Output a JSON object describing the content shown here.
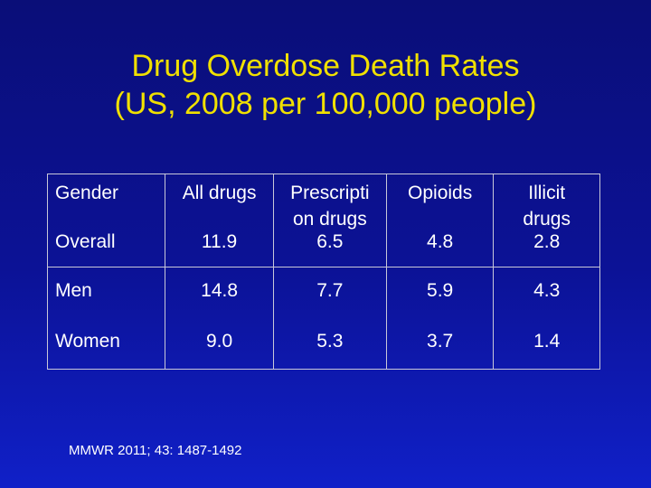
{
  "slide": {
    "title_line1": "Drug Overdose Death Rates",
    "title_line2": "(US, 2008 per 100,000 people)",
    "citation": "MMWR 2011; 43: 1487-1492",
    "colors": {
      "background": "#0c1296",
      "title": "#f0e000",
      "text": "#ffffff"
    }
  },
  "table": {
    "headers": {
      "gender": "Gender",
      "all_drugs": "All drugs",
      "prescription_drugs_line1": "Prescripti",
      "prescription_drugs_line2": "on drugs",
      "opioids": "Opioids",
      "illicit_drugs_line1": "Illicit",
      "illicit_drugs_line2": "drugs"
    },
    "rows": [
      {
        "gender": "Overall",
        "all_drugs": "11.9",
        "prescription_drugs": "6.5",
        "opioids": "4.8",
        "illicit_drugs": "2.8"
      },
      {
        "gender": "Men",
        "all_drugs": "14.8",
        "prescription_drugs": "7.7",
        "opioids": "5.9",
        "illicit_drugs": "4.3"
      },
      {
        "gender": "Women",
        "all_drugs": "9.0",
        "prescription_drugs": "5.3",
        "opioids": "3.7",
        "illicit_drugs": "1.4"
      }
    ]
  }
}
